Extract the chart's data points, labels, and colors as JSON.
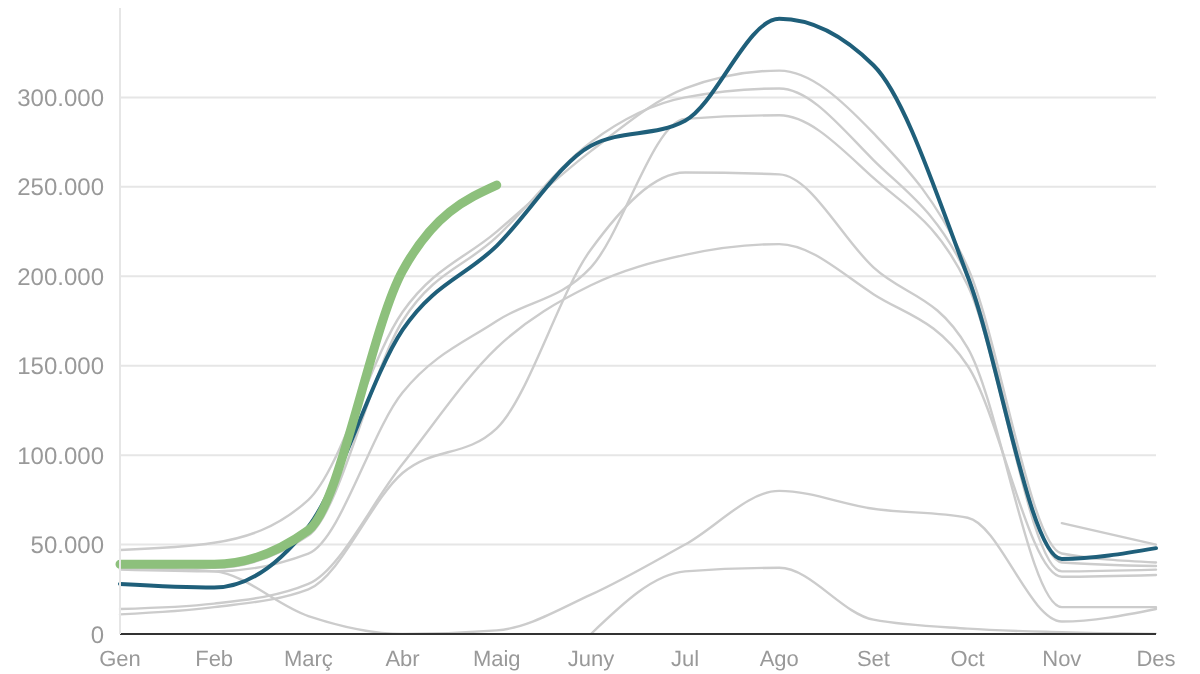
{
  "chart_data": {
    "type": "line",
    "categories": [
      "Gen",
      "Feb",
      "Març",
      "Abr",
      "Maig",
      "Juny",
      "Jul",
      "Ago",
      "Set",
      "Oct",
      "Nov",
      "Des"
    ],
    "yticks": [
      {
        "value": 0,
        "label": "0"
      },
      {
        "value": 50000,
        "label": "50.000"
      },
      {
        "value": 100000,
        "label": "100.000"
      },
      {
        "value": 150000,
        "label": "150.000"
      },
      {
        "value": 200000,
        "label": "200.000"
      },
      {
        "value": 250000,
        "label": "250.000"
      },
      {
        "value": 300000,
        "label": "300.000"
      }
    ],
    "ylim": [
      0,
      350000
    ],
    "grid": "y",
    "series": [
      {
        "color": "#cccccc",
        "values": [
          47000,
          51000,
          75000,
          180000,
          225000,
          270000,
          305000,
          315000,
          280000,
          205000,
          45000,
          40000
        ]
      },
      {
        "color": "#cccccc",
        "values": [
          40000,
          37000,
          55000,
          175000,
          222000,
          275000,
          300000,
          305000,
          265000,
          200000,
          40000,
          38000
        ]
      },
      {
        "color": "#cccccc",
        "values": [
          36000,
          35000,
          45000,
          135000,
          175000,
          205000,
          288000,
          290000,
          255000,
          195000,
          35000,
          36000
        ]
      },
      {
        "color": "#cccccc",
        "values": [
          14000,
          17000,
          28000,
          95000,
          160000,
          195000,
          212000,
          218000,
          190000,
          150000,
          32000,
          33000
        ]
      },
      {
        "color": "#cccccc",
        "values": [
          11000,
          15000,
          25000,
          90000,
          115000,
          215000,
          258000,
          257000,
          205000,
          160000,
          15000,
          15000
        ]
      },
      {
        "color": "#cccccc",
        "values": [
          37000,
          35000,
          10000,
          0,
          2000,
          22000,
          50000,
          80000,
          70000,
          65000,
          7000,
          14000
        ]
      },
      {
        "color": "#cccccc",
        "values": [
          null,
          null,
          null,
          null,
          null,
          0,
          35000,
          37000,
          8000,
          3000,
          1000,
          0
        ]
      },
      {
        "color": "#cccccc",
        "values": [
          null,
          null,
          null,
          null,
          null,
          null,
          null,
          null,
          null,
          null,
          62000,
          50000
        ]
      },
      {
        "color": "#1f5f7a",
        "values": [
          28000,
          26000,
          60000,
          170000,
          217000,
          273000,
          287000,
          344000,
          318000,
          200000,
          42000,
          48000
        ]
      },
      {
        "color": "#8dc07c",
        "values": [
          39000,
          39000,
          58000,
          203000,
          251000,
          null,
          null,
          null,
          null,
          null,
          null,
          null
        ]
      }
    ]
  }
}
